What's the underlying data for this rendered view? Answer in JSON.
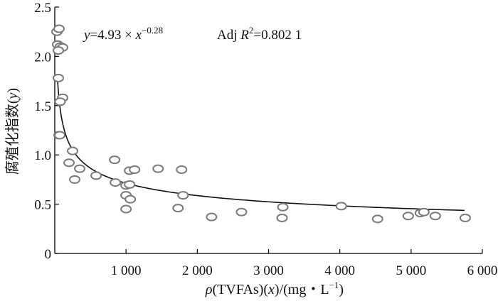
{
  "chart_data": {
    "type": "scatter",
    "title": "",
    "xlabel": {
      "rho": "ρ",
      "text": "(TVFAs)(",
      "var": "x",
      "unit": ")/(mg・L",
      "sup": "−1",
      "close": ")"
    },
    "ylabel": {
      "text": "腐殖化指数(",
      "var": "y",
      "close": ")"
    },
    "xlim": [
      0,
      6000
    ],
    "ylim": [
      0,
      2.5
    ],
    "xticks": [
      1000,
      2000,
      3000,
      4000,
      5000,
      6000
    ],
    "xtick_labels": [
      "1 000",
      "2 000",
      "3 000",
      "4 000",
      "5 000",
      "6 000"
    ],
    "yticks": [
      0,
      0.5,
      1.0,
      1.5,
      2.0,
      2.5
    ],
    "ytick_labels": [
      "0",
      "0.5",
      "1.0",
      "1.5",
      "2.0",
      "2.5"
    ],
    "fit": {
      "a": 4.93,
      "b": -0.28,
      "x_start": 40,
      "x_end": 5750
    },
    "equation": {
      "lhs": "y",
      "mid": "=4.93 × ",
      "var": "x",
      "exp": "−0.28"
    },
    "r2_label": {
      "prefix": "Adj ",
      "var": "R",
      "sup": "2",
      "value": "=0.802 1"
    },
    "points": [
      {
        "x": 30,
        "y": 2.25
      },
      {
        "x": 60,
        "y": 2.28
      },
      {
        "x": 40,
        "y": 2.12
      },
      {
        "x": 80,
        "y": 2.1
      },
      {
        "x": 110,
        "y": 2.09
      },
      {
        "x": 50,
        "y": 2.06
      },
      {
        "x": 50,
        "y": 1.78
      },
      {
        "x": 110,
        "y": 1.58
      },
      {
        "x": 75,
        "y": 1.54
      },
      {
        "x": 60,
        "y": 1.2
      },
      {
        "x": 70,
        "y": 1.2
      },
      {
        "x": 250,
        "y": 1.04
      },
      {
        "x": 200,
        "y": 0.92
      },
      {
        "x": 350,
        "y": 0.86
      },
      {
        "x": 280,
        "y": 0.75
      },
      {
        "x": 580,
        "y": 0.79
      },
      {
        "x": 840,
        "y": 0.95
      },
      {
        "x": 850,
        "y": 0.72
      },
      {
        "x": 1050,
        "y": 0.84
      },
      {
        "x": 1120,
        "y": 0.85
      },
      {
        "x": 1450,
        "y": 0.86
      },
      {
        "x": 1780,
        "y": 0.85
      },
      {
        "x": 1000,
        "y": 0.69
      },
      {
        "x": 1050,
        "y": 0.7
      },
      {
        "x": 1000,
        "y": 0.59
      },
      {
        "x": 1060,
        "y": 0.55
      },
      {
        "x": 1000,
        "y": 0.45
      },
      {
        "x": 1800,
        "y": 0.59
      },
      {
        "x": 1730,
        "y": 0.46
      },
      {
        "x": 2200,
        "y": 0.37
      },
      {
        "x": 2620,
        "y": 0.42
      },
      {
        "x": 3200,
        "y": 0.47
      },
      {
        "x": 3190,
        "y": 0.36
      },
      {
        "x": 4020,
        "y": 0.48
      },
      {
        "x": 4530,
        "y": 0.35
      },
      {
        "x": 4960,
        "y": 0.38
      },
      {
        "x": 5130,
        "y": 0.41
      },
      {
        "x": 5180,
        "y": 0.42
      },
      {
        "x": 5340,
        "y": 0.38
      },
      {
        "x": 5760,
        "y": 0.36
      }
    ]
  }
}
